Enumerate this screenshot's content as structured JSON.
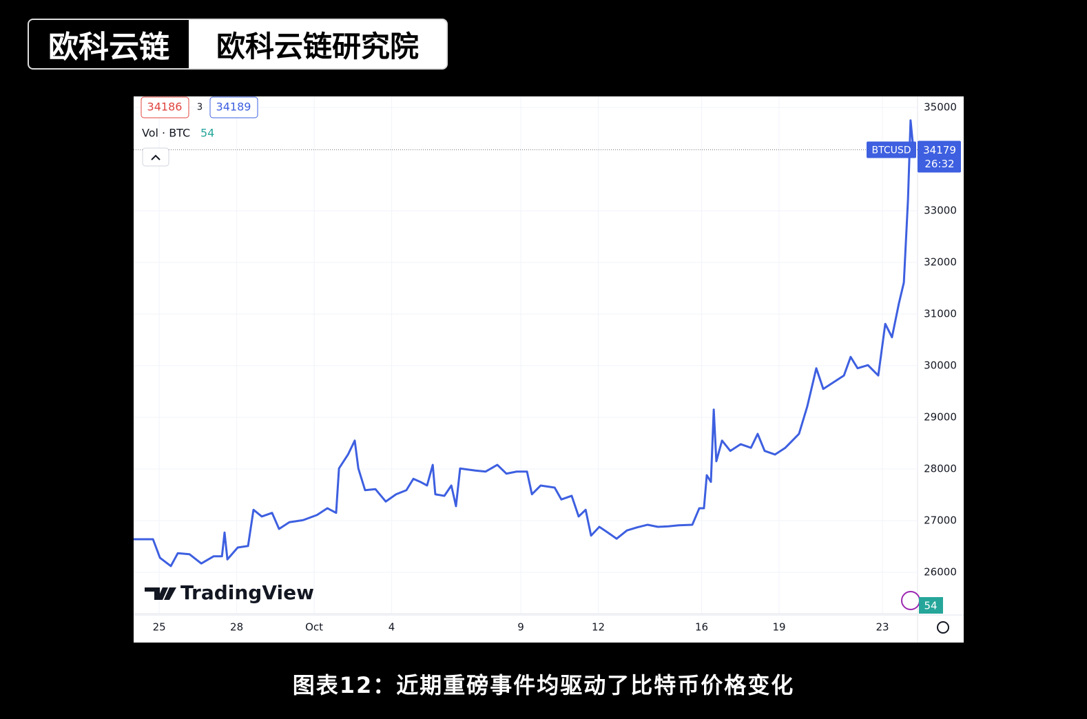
{
  "header": {
    "logo": "欧科云链",
    "title": "欧科云链研究院"
  },
  "caption": "图表12：近期重磅事件均驱动了比特币价格变化",
  "chart_data": {
    "type": "line",
    "bid": "34186",
    "spread": "3",
    "ask": "34189",
    "volume_label": "Vol · BTC",
    "volume_value": "54",
    "symbol": "BTCUSD",
    "last_price": 34179,
    "countdown": "26:32",
    "watermark": "TradingView",
    "volume_badge": "54",
    "xlim": [
      -0.99,
      29.36
    ],
    "ylim": [
      25213,
      35213
    ],
    "xticks": [
      {
        "value": 0,
        "label": "25"
      },
      {
        "value": 3,
        "label": "28"
      },
      {
        "value": 6,
        "label": "Oct"
      },
      {
        "value": 9,
        "label": "4"
      },
      {
        "value": 14,
        "label": "9"
      },
      {
        "value": 17,
        "label": "12"
      },
      {
        "value": 21,
        "label": "16"
      },
      {
        "value": 24,
        "label": "19"
      },
      {
        "value": 28,
        "label": "23"
      }
    ],
    "yticks": [
      26000,
      27000,
      28000,
      29000,
      30000,
      31000,
      32000,
      33000,
      35000
    ],
    "grid": true,
    "series": [
      {
        "name": "BTCUSD",
        "color": "#3d5fe0",
        "x": [
          -0.99,
          -0.24,
          0.03,
          0.45,
          0.72,
          1.17,
          1.63,
          2.11,
          2.43,
          2.53,
          2.64,
          3.04,
          3.44,
          3.65,
          3.97,
          4.37,
          4.64,
          5.04,
          5.57,
          6.11,
          6.51,
          6.85,
          6.96,
          7.31,
          7.57,
          7.71,
          7.97,
          8.37,
          8.77,
          9.17,
          9.57,
          9.84,
          10.11,
          10.37,
          10.59,
          10.69,
          11.04,
          11.31,
          11.49,
          11.65,
          12.24,
          12.64,
          13.09,
          13.44,
          13.84,
          14.24,
          14.43,
          14.77,
          15.31,
          15.57,
          15.97,
          16.24,
          16.51,
          16.72,
          17.04,
          17.31,
          17.71,
          18.11,
          18.51,
          18.91,
          19.31,
          19.71,
          20.11,
          20.64,
          20.91,
          21.09,
          21.2,
          21.36,
          21.47,
          21.57,
          21.79,
          22.11,
          22.51,
          22.91,
          23.17,
          23.44,
          23.84,
          24.24,
          24.77,
          25.09,
          25.44,
          25.71,
          26.11,
          26.51,
          26.77,
          27.04,
          27.44,
          27.84,
          28.11,
          28.37,
          28.64,
          28.83,
          28.99,
          29.09,
          29.2
        ],
        "values": [
          26640,
          26640,
          26280,
          26120,
          26370,
          26350,
          26170,
          26310,
          26310,
          26770,
          26250,
          26480,
          26510,
          27210,
          27080,
          27150,
          26840,
          26970,
          27010,
          27110,
          27240,
          27150,
          28010,
          28280,
          28550,
          28010,
          27590,
          27610,
          27370,
          27510,
          27590,
          27810,
          27750,
          27680,
          28080,
          27510,
          27480,
          27680,
          27280,
          28010,
          27970,
          27950,
          28080,
          27910,
          27950,
          27950,
          27510,
          27680,
          27640,
          27410,
          27480,
          27080,
          27210,
          26710,
          26880,
          26790,
          26650,
          26810,
          26870,
          26920,
          26880,
          26890,
          26910,
          26920,
          27240,
          27240,
          27880,
          27750,
          29150,
          28150,
          28550,
          28350,
          28480,
          28410,
          28680,
          28350,
          28280,
          28410,
          28680,
          29210,
          29950,
          29550,
          29680,
          29810,
          30170,
          29950,
          30010,
          29810,
          30810,
          30550,
          31210,
          31610,
          33210,
          34750,
          34179
        ]
      }
    ]
  }
}
